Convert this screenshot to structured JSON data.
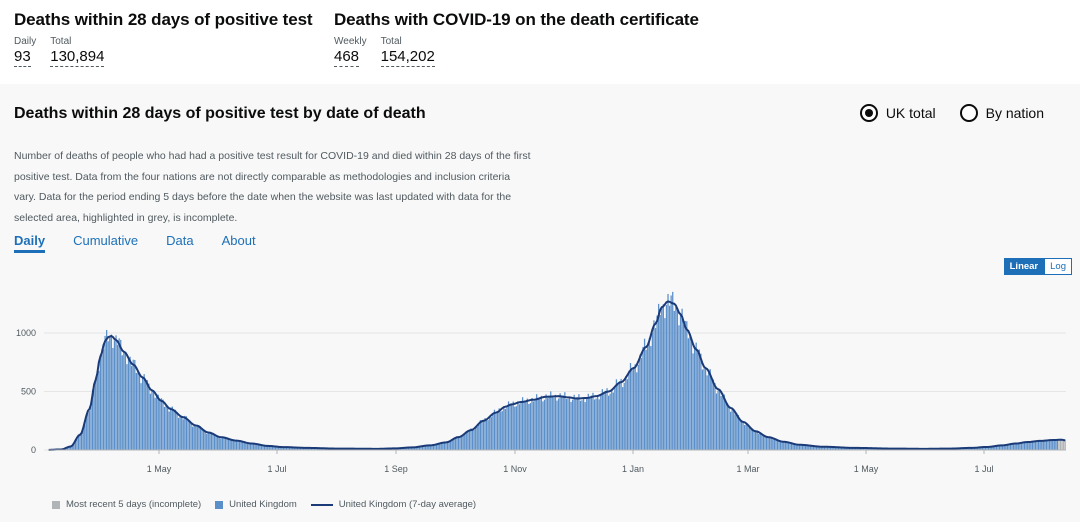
{
  "headline": {
    "deaths28": {
      "title": "Deaths within 28 days of positive test",
      "daily_label": "Daily",
      "daily_value": "93",
      "total_label": "Total",
      "total_value": "130,894"
    },
    "certificate": {
      "title": "Deaths with COVID-19 on the death certificate",
      "weekly_label": "Weekly",
      "weekly_value": "468",
      "total_label": "Total",
      "total_value": "154,202"
    }
  },
  "card": {
    "title": "Deaths within 28 days of positive test by date of death",
    "radio_uk": "UK total",
    "radio_nation": "By nation",
    "description": "Number of deaths of people who had had a positive test result for COVID-19 and died within 28 days of the first positive test. Data from the four nations are not directly comparable as methodologies and inclusion criteria vary. Data for the period ending 5 days before the date when the website was last updated with data for the selected area, highlighted in grey, is incomplete.",
    "tabs": [
      "Daily",
      "Cumulative",
      "Data",
      "About"
    ],
    "scale_linear": "Linear",
    "scale_log": "Log"
  },
  "legend": {
    "incomplete": "Most recent 5 days (incomplete)",
    "uk": "United Kingdom",
    "avg": "United Kingdom (7-day average)"
  },
  "colors": {
    "bar": "#5b8fc9",
    "line": "#1a3a78",
    "incomplete": "#b1b4b6",
    "accent": "#1d70b8"
  },
  "chart_data": {
    "type": "bar",
    "x_tick_labels": [
      "1 May",
      "1 Jul",
      "1 Sep",
      "1 Nov",
      "1 Jan",
      "1 Mar",
      "1 May",
      "1 Jul"
    ],
    "y_ticks": [
      "0",
      "500",
      "1000"
    ],
    "ylim": [
      0,
      1350
    ],
    "series": [
      {
        "name": "United Kingdom",
        "type": "bar"
      },
      {
        "name": "United Kingdom (7-day average)",
        "type": "line"
      }
    ],
    "incomplete_days": 5,
    "anchors": [
      [
        0,
        1
      ],
      [
        8,
        5
      ],
      [
        14,
        30
      ],
      [
        20,
        130
      ],
      [
        26,
        350
      ],
      [
        30,
        600
      ],
      [
        33,
        800
      ],
      [
        36,
        930
      ],
      [
        38,
        965
      ],
      [
        40,
        975
      ],
      [
        43,
        940
      ],
      [
        48,
        840
      ],
      [
        54,
        730
      ],
      [
        60,
        620
      ],
      [
        66,
        510
      ],
      [
        72,
        420
      ],
      [
        78,
        350
      ],
      [
        86,
        280
      ],
      [
        94,
        210
      ],
      [
        102,
        150
      ],
      [
        110,
        110
      ],
      [
        120,
        80
      ],
      [
        130,
        55
      ],
      [
        140,
        35
      ],
      [
        150,
        25
      ],
      [
        165,
        18
      ],
      [
        185,
        12
      ],
      [
        210,
        10
      ],
      [
        222,
        14
      ],
      [
        232,
        22
      ],
      [
        244,
        40
      ],
      [
        254,
        65
      ],
      [
        262,
        110
      ],
      [
        270,
        170
      ],
      [
        278,
        250
      ],
      [
        286,
        320
      ],
      [
        292,
        370
      ],
      [
        296,
        390
      ],
      [
        302,
        410
      ],
      [
        310,
        430
      ],
      [
        318,
        455
      ],
      [
        326,
        460
      ],
      [
        332,
        450
      ],
      [
        338,
        440
      ],
      [
        344,
        445
      ],
      [
        350,
        460
      ],
      [
        358,
        500
      ],
      [
        366,
        580
      ],
      [
        374,
        700
      ],
      [
        382,
        880
      ],
      [
        388,
        1080
      ],
      [
        392,
        1220
      ],
      [
        396,
        1270
      ],
      [
        400,
        1250
      ],
      [
        404,
        1160
      ],
      [
        408,
        1030
      ],
      [
        414,
        860
      ],
      [
        420,
        700
      ],
      [
        428,
        520
      ],
      [
        436,
        360
      ],
      [
        444,
        240
      ],
      [
        452,
        160
      ],
      [
        460,
        110
      ],
      [
        470,
        70
      ],
      [
        480,
        45
      ],
      [
        495,
        28
      ],
      [
        515,
        18
      ],
      [
        540,
        12
      ],
      [
        560,
        10
      ],
      [
        576,
        12
      ],
      [
        590,
        18
      ],
      [
        600,
        26
      ],
      [
        610,
        40
      ],
      [
        618,
        55
      ],
      [
        626,
        68
      ],
      [
        634,
        78
      ],
      [
        642,
        85
      ],
      [
        648,
        88
      ],
      [
        650,
        82
      ]
    ]
  }
}
